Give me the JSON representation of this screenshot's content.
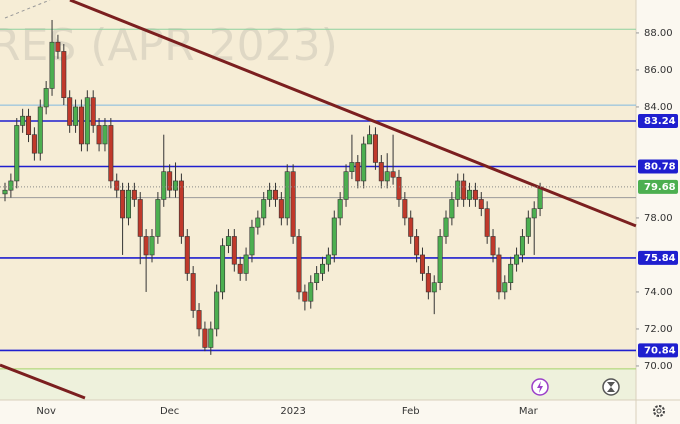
{
  "chart_data": {
    "type": "candlestick",
    "watermark": "RES (APR 2023)",
    "categories": [
      null,
      null,
      null,
      null,
      null,
      null,
      null,
      "Nov",
      null,
      null,
      null,
      null,
      null,
      null,
      null,
      null,
      null,
      null,
      null,
      null,
      null,
      null,
      null,
      null,
      null,
      null,
      null,
      null,
      "Dec",
      null,
      null,
      null,
      null,
      null,
      null,
      null,
      null,
      null,
      null,
      null,
      null,
      null,
      null,
      null,
      null,
      null,
      null,
      null,
      null,
      "2023",
      null,
      null,
      null,
      null,
      null,
      null,
      null,
      null,
      null,
      null,
      null,
      null,
      null,
      null,
      null,
      null,
      null,
      null,
      null,
      "Feb",
      null,
      null,
      null,
      null,
      null,
      null,
      null,
      null,
      null,
      null,
      null,
      null,
      null,
      null,
      null,
      null,
      null,
      null,
      null,
      "Mar",
      null,
      null
    ],
    "open": [
      79.3,
      79.5,
      80,
      83,
      83.5,
      82.5,
      81.5,
      84,
      85,
      87.5,
      87,
      84.5,
      83,
      84,
      82,
      84.5,
      83,
      82,
      83,
      80,
      79.5,
      78,
      79.5,
      79,
      77,
      76,
      77,
      79,
      80.5,
      79.5,
      80,
      77,
      75,
      73,
      72,
      71,
      72,
      74,
      76.5,
      77,
      75.5,
      75,
      76,
      77.5,
      78,
      79,
      79.5,
      79,
      78,
      80.5,
      77,
      74,
      73.5,
      74.5,
      75,
      75.5,
      76,
      78,
      79,
      80.5,
      81,
      80,
      82,
      82.5,
      81,
      80,
      80.5,
      80.2,
      79,
      78,
      77,
      76,
      75,
      74,
      74.5,
      77,
      78,
      79,
      80,
      79,
      79.5,
      79,
      78.5,
      77,
      76,
      74,
      74.5,
      75.5,
      76,
      77,
      78,
      78.5
    ],
    "high": [
      79.9,
      80.4,
      83.4,
      83.9,
      83.9,
      82.9,
      84.4,
      85.4,
      88.7,
      87.9,
      87.4,
      84.9,
      84.4,
      84.4,
      84.9,
      84.9,
      83.4,
      83.4,
      83.4,
      80.4,
      79.9,
      79.9,
      79.9,
      79.4,
      77.4,
      77.4,
      79.4,
      82.5,
      80.9,
      81,
      80.4,
      77.4,
      75.4,
      73.4,
      72.4,
      72.4,
      74.4,
      76.9,
      77.4,
      77.4,
      75.9,
      76.4,
      77.9,
      78.4,
      79.4,
      79.9,
      79.9,
      79.4,
      80.9,
      80.9,
      77.4,
      74.4,
      74.9,
      75.4,
      75.9,
      76.4,
      78.4,
      79.4,
      80.9,
      82.5,
      81.4,
      82.4,
      83,
      82.9,
      81.4,
      81.5,
      82.5,
      80.6,
      79.4,
      78.4,
      77.4,
      76.4,
      75.4,
      74.9,
      77.4,
      78.4,
      79.4,
      80.4,
      80.4,
      79.9,
      79.9,
      79.4,
      78.9,
      77.4,
      76.4,
      74.9,
      75.9,
      76.4,
      77.4,
      78.4,
      78.9,
      79.9
    ],
    "low": [
      78.9,
      79.1,
      79.6,
      82.6,
      82.1,
      81.1,
      81.1,
      83.6,
      84.6,
      86.6,
      84.1,
      82.6,
      82.6,
      81.6,
      81.6,
      82.6,
      81.6,
      81.6,
      79.6,
      79.1,
      76,
      77.6,
      78.6,
      75.5,
      74,
      75.6,
      76.6,
      78.6,
      79.1,
      79.1,
      76.6,
      74.6,
      72.6,
      71.6,
      70.8,
      70.6,
      71.6,
      73.6,
      76.1,
      75.1,
      74.6,
      74.6,
      75.6,
      77.1,
      77.6,
      78.6,
      78.6,
      77.6,
      77.6,
      76.6,
      73.6,
      73,
      73.1,
      74.1,
      74.6,
      75.1,
      75.6,
      77.6,
      78.6,
      80.1,
      79.6,
      79.6,
      82.1,
      80.6,
      79.6,
      79.6,
      79.8,
      78.6,
      77.6,
      76.6,
      75.6,
      74.6,
      73.6,
      72.8,
      74.1,
      76.6,
      77.6,
      78.6,
      78.6,
      78.6,
      78.6,
      78.1,
      76.6,
      75.6,
      73.6,
      73.6,
      74.1,
      75.1,
      75.6,
      76.6,
      76,
      78.1
    ],
    "close": [
      79.5,
      80,
      83,
      83.5,
      82.5,
      81.5,
      84,
      85,
      87.5,
      87,
      84.5,
      83,
      84,
      82,
      84.5,
      83,
      82,
      83,
      80,
      79.5,
      78,
      79.5,
      79,
      77,
      76,
      77,
      79,
      80.5,
      79.5,
      80,
      77,
      75,
      73,
      72,
      71,
      72,
      74,
      76.5,
      77,
      75.5,
      75,
      76,
      77.5,
      78,
      79,
      79.5,
      79,
      78,
      80.5,
      77,
      74,
      73.5,
      74.5,
      75,
      75.5,
      76,
      78,
      79,
      80.5,
      81,
      80,
      82,
      82.5,
      81,
      80,
      80.5,
      80.2,
      79,
      78,
      77,
      76,
      75,
      74,
      74.5,
      77,
      78,
      79,
      80,
      79,
      79.5,
      79,
      78.5,
      77,
      76,
      74,
      74.5,
      75.5,
      76,
      77,
      78,
      78.5,
      79.68
    ],
    "up_color": "#4caf50",
    "down_color": "#c0392b",
    "last_color": "#4caf50",
    "ylim": [
      68.16,
      89.78
    ],
    "yticks": [
      {
        "value": 70,
        "label": "70.00"
      },
      {
        "value": 72,
        "label": "72.00"
      },
      {
        "value": 74,
        "label": "74.00"
      },
      {
        "value": 78,
        "label": "78.00"
      },
      {
        "value": 84,
        "label": "84.00"
      },
      {
        "value": 86,
        "label": "86.00"
      },
      {
        "value": 88,
        "label": "88.00"
      }
    ],
    "levels": [
      83.24,
      80.78,
      75.84,
      70.84
    ],
    "level_color": "#1f1fcf",
    "guides": [
      {
        "value": 88.2,
        "color": "#8fd19e"
      },
      {
        "value": 84.1,
        "color": "#7fb8e0"
      },
      {
        "value": 79.1,
        "color": "#9a9a9a"
      },
      {
        "value": 69.84,
        "color": "#a5d46a"
      }
    ],
    "trendlines": [
      {
        "from": [
          11.05,
          89.78
        ],
        "to": [
          107.3,
          77.57
        ],
        "color": "#7b1f1f"
      },
      {
        "from": [
          -0.85,
          70.05
        ],
        "to": [
          13.6,
          68.27
        ],
        "color": "#7b1f1f"
      }
    ]
  }
}
